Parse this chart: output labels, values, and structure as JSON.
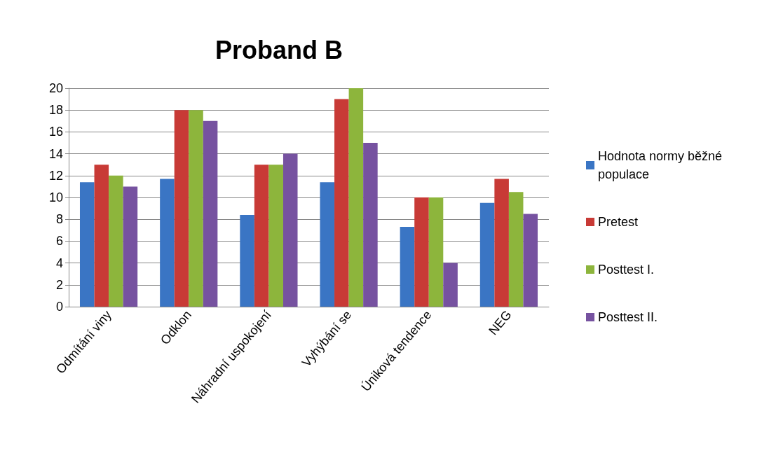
{
  "chart_data": {
    "type": "bar",
    "title": "Proband B",
    "categories": [
      "Odmítání viny",
      "Odklon",
      "Náhradní uspokojení",
      "Vyhýbání se",
      "Úniková tendence",
      "NEG"
    ],
    "series": [
      {
        "name": "Hodnota normy běžné populace",
        "color": "#3a75c4",
        "values": [
          11.4,
          11.7,
          8.4,
          11.4,
          7.3,
          9.5
        ]
      },
      {
        "name": "Pretest",
        "color": "#c83a36",
        "values": [
          13,
          18,
          13,
          19,
          10,
          11.7
        ]
      },
      {
        "name": "Posttest I.",
        "color": "#8db53c",
        "values": [
          12,
          18,
          13,
          20,
          10,
          10.5
        ]
      },
      {
        "name": "Posttest II.",
        "color": "#7652a0",
        "values": [
          11,
          17,
          14,
          15,
          4,
          8.5
        ]
      }
    ],
    "ylim": [
      0,
      20
    ],
    "yticks": [
      0,
      2,
      4,
      6,
      8,
      10,
      12,
      14,
      16,
      18,
      20
    ],
    "grid": "y",
    "legend": "right"
  }
}
